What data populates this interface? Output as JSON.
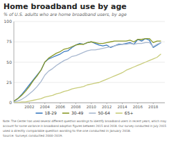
{
  "chart_data": {
    "type": "line",
    "title": "Home broadband use by age",
    "subtitle": "% of U.S. adults who are home broadband users, by age",
    "annotations": [
      "Note: The Center has used several different question wordings to identify broadband users in recent years, which may",
      "account for some variance in broadband adoption figures between 2015 and 2018. Our survey conducted in July 2015",
      "used a directly comparable question wording to the one conducted in January 2018.",
      "Source: Surveys conducted 2000-2019."
    ],
    "x": [
      2000,
      2000.5,
      2001,
      2001.5,
      2002,
      2002.5,
      2003,
      2003.5,
      2004,
      2004.5,
      2005,
      2005.5,
      2006,
      2006.5,
      2007,
      2007.5,
      2008,
      2008.5,
      2009,
      2009.5,
      2010,
      2010.5,
      2011,
      2011.5,
      2012,
      2012.5,
      2013,
      2013.5,
      2014,
      2014.5,
      2015,
      2015.5,
      2016,
      2016.5,
      2017,
      2017.5,
      2018,
      2018.5,
      2019
    ],
    "series": [
      {
        "name": "18-29",
        "color": "#3a7abf",
        "values": [
          2,
          5,
          10,
          16,
          22,
          28,
          34,
          40,
          50,
          54,
          56,
          58,
          60,
          63,
          64,
          68,
          71,
          73,
          72,
          74,
          75,
          73,
          71,
          70,
          71,
          68,
          70,
          72,
          72,
          73,
          74,
          72,
          78,
          76,
          79,
          77,
          68,
          71,
          74
        ]
      },
      {
        "name": "30-49",
        "color": "#8b9a2a",
        "values": [
          2,
          5,
          9,
          14,
          20,
          27,
          33,
          40,
          50,
          55,
          58,
          61,
          63,
          66,
          67,
          69,
          71,
          72,
          72,
          74,
          75,
          74,
          73,
          73,
          74,
          75,
          76,
          76,
          76,
          76,
          77,
          75,
          78,
          78,
          79,
          79,
          74,
          76,
          76
        ]
      },
      {
        "name": "50-64",
        "color": "#a8b8d0",
        "values": [
          1,
          2,
          4,
          7,
          11,
          15,
          20,
          26,
          34,
          39,
          42,
          46,
          49,
          52,
          54,
          57,
          58,
          60,
          62,
          64,
          65,
          65,
          66,
          67,
          68,
          69,
          70,
          71,
          72,
          72,
          73,
          72,
          73,
          73,
          74,
          74,
          69,
          72,
          74
        ]
      },
      {
        "name": "65+",
        "color": "#c8cc7a",
        "values": [
          0,
          0,
          1,
          1,
          2,
          3,
          4,
          5,
          7,
          8,
          9,
          11,
          12,
          14,
          15,
          17,
          18,
          19,
          20,
          22,
          23,
          24,
          25,
          27,
          29,
          31,
          33,
          35,
          37,
          40,
          42,
          44,
          46,
          48,
          50,
          52,
          54,
          56,
          60
        ]
      }
    ],
    "xlim": [
      2000,
      2019.5
    ],
    "xticks": [
      2002,
      2004,
      2006,
      2008,
      2010,
      2012,
      2014,
      2016,
      2018
    ],
    "ylim": [
      0,
      100
    ],
    "yticks": [
      0,
      25,
      50,
      75,
      100
    ],
    "grid": true,
    "legend": "bottom"
  }
}
